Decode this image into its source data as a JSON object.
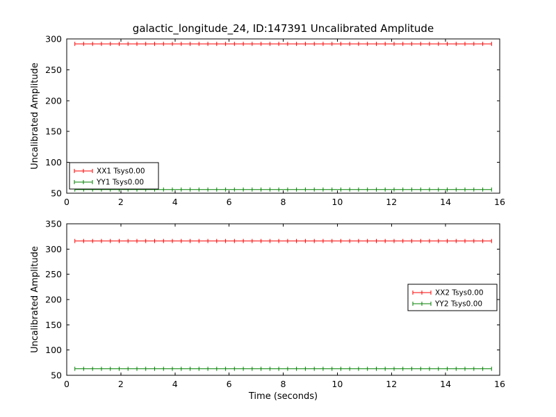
{
  "figure": {
    "background_color": "#ffffff",
    "axes_color": "#000000",
    "text_color": "#000000"
  },
  "chart_data": [
    {
      "type": "line",
      "title": "galactic_longitude_24, ID:147391 Uncalibrated Amplitude",
      "xlabel": "",
      "ylabel": "Uncalibrated Amplitude",
      "xlim": [
        0,
        16
      ],
      "ylim": [
        50,
        300
      ],
      "xticks": [
        0,
        2,
        4,
        6,
        8,
        10,
        12,
        14,
        16
      ],
      "yticks": [
        50,
        100,
        150,
        200,
        250,
        300
      ],
      "grid": false,
      "marker": "vertical-tick-errorbar",
      "x_start": 0.3,
      "x_end": 15.7,
      "n_points": 48,
      "legend_position": "lower-left",
      "series": [
        {
          "name": "XX1 Tsys0.00",
          "color": "#ff0000",
          "value": 292
        },
        {
          "name": "YY1 Tsys0.00",
          "color": "#008000",
          "value": 56
        }
      ]
    },
    {
      "type": "line",
      "title": "",
      "xlabel": "Time (seconds)",
      "ylabel": "Uncalibrated Amplitude",
      "xlim": [
        0,
        16
      ],
      "ylim": [
        50,
        350
      ],
      "xticks": [
        0,
        2,
        4,
        6,
        8,
        10,
        12,
        14,
        16
      ],
      "yticks": [
        50,
        100,
        150,
        200,
        250,
        300,
        350
      ],
      "grid": false,
      "marker": "vertical-tick-errorbar",
      "x_start": 0.3,
      "x_end": 15.7,
      "n_points": 48,
      "legend_position": "center-right",
      "series": [
        {
          "name": "XX2 Tsys0.00",
          "color": "#ff0000",
          "value": 316
        },
        {
          "name": "YY2 Tsys0.00",
          "color": "#008000",
          "value": 63
        }
      ]
    }
  ]
}
